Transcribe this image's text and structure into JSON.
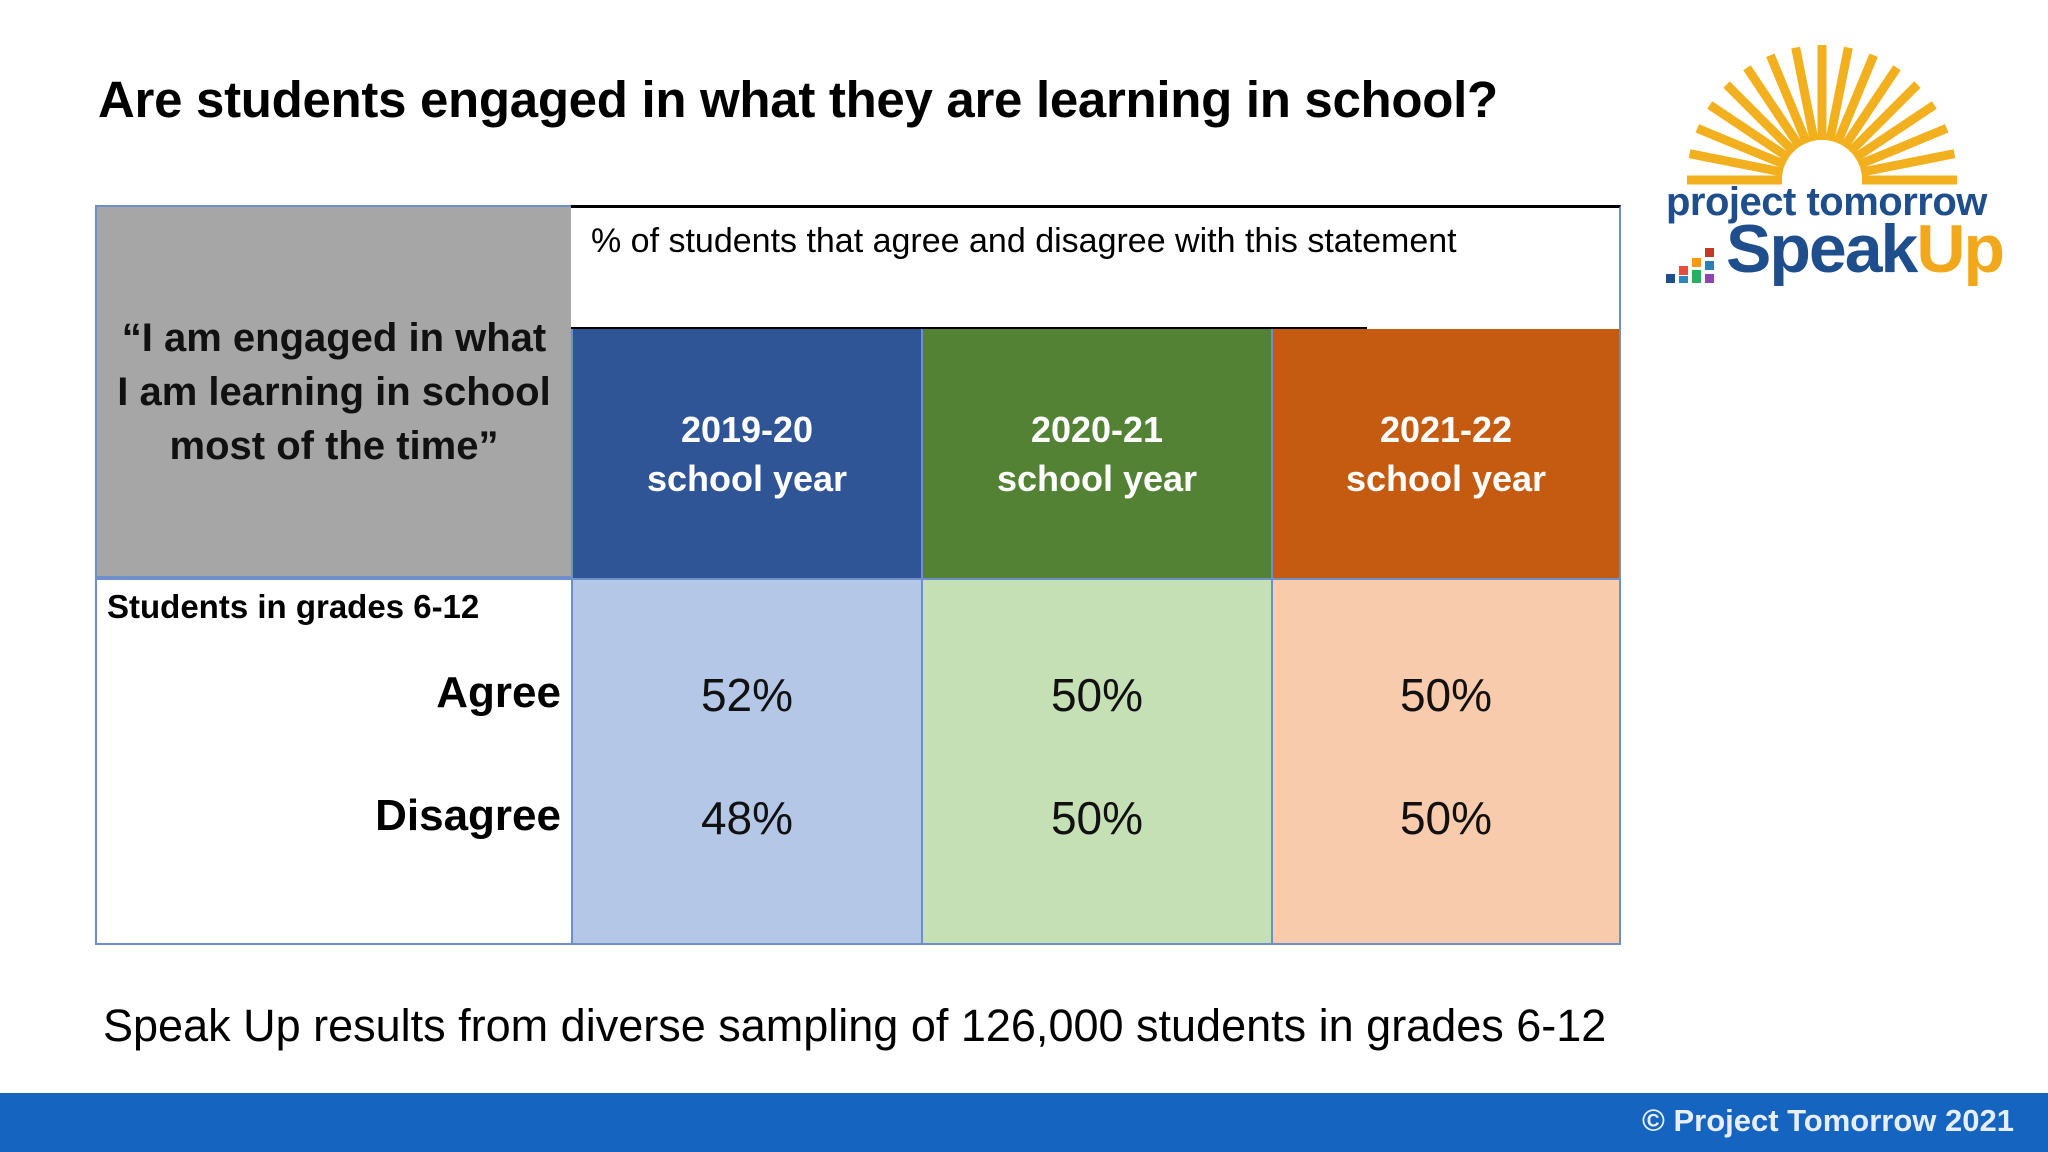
{
  "slide": {
    "title": "Are students engaged in what they are learning in school?",
    "footnote": "Speak Up results from diverse sampling of 126,000 students in grades 6-12",
    "copyright": "© Project Tomorrow 2021"
  },
  "logo": {
    "line1": "project tomorrow",
    "line2_main": "Speak",
    "line2_accent": "Up",
    "colors": {
      "sun": "#f2b01e",
      "text": "#1f4e8c",
      "accent": "#f2a81d"
    }
  },
  "table": {
    "statement": "“I am engaged in what I am learning in school most of the time”",
    "header_note": "% of students that agree and disagree with this statement",
    "group_label": "Students in grades 6-12",
    "row_labels": [
      "Agree",
      "Disagree"
    ],
    "columns": [
      {
        "year": "2019-20",
        "sub": "school year",
        "agree": "52%",
        "disagree": "48%",
        "head_color": "#2f5597",
        "body_color": "#b4c7e7"
      },
      {
        "year": "2020-21",
        "sub": "school year",
        "agree": "50%",
        "disagree": "50%",
        "head_color": "#548235",
        "body_color": "#c5e0b4"
      },
      {
        "year": "2021-22",
        "sub": "school year",
        "agree": "50%",
        "disagree": "50%",
        "head_color": "#c55a11",
        "body_color": "#f8cbad"
      }
    ]
  }
}
